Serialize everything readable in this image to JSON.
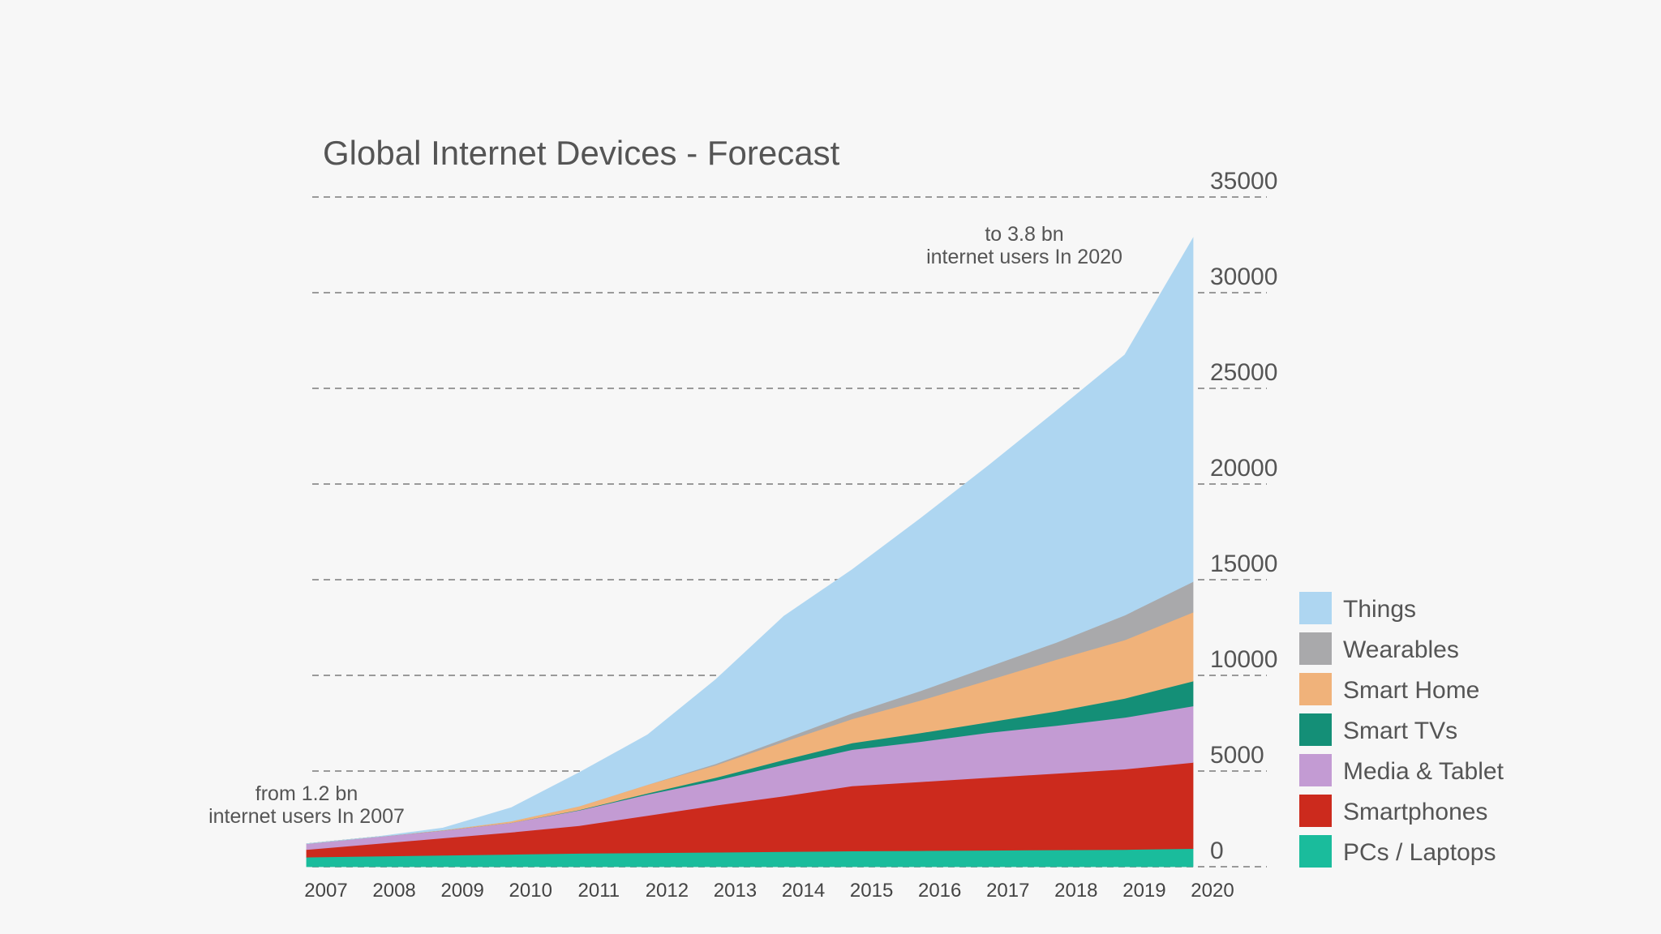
{
  "chart_data": {
    "type": "area",
    "stacked": true,
    "title": "Global Internet Devices - Forecast",
    "xlabel": "",
    "ylabel": "",
    "x": [
      "2007",
      "2008",
      "2009",
      "2010",
      "2011",
      "2012",
      "2013",
      "2014",
      "2015",
      "2016",
      "2017",
      "2018",
      "2019",
      "2020"
    ],
    "ylim": [
      0,
      35000
    ],
    "yticks": [
      "0",
      "5000",
      "10000",
      "15000",
      "20000",
      "25000",
      "30000",
      "35000"
    ],
    "grid": true,
    "legend_position": "right",
    "series": [
      {
        "name": "PCs / Laptops",
        "color": "#1abc9c",
        "values": [
          500,
          550,
          600,
          650,
          700,
          730,
          760,
          790,
          820,
          840,
          860,
          880,
          900,
          950
        ]
      },
      {
        "name": "Smartphones",
        "color": "#cc2a1d",
        "values": [
          400,
          650,
          900,
          1150,
          1450,
          1950,
          2450,
          2900,
          3400,
          3600,
          3800,
          4000,
          4200,
          4500
        ]
      },
      {
        "name": "Media & Tablet",
        "color": "#c39bd3",
        "values": [
          300,
          350,
          400,
          500,
          800,
          1100,
          1300,
          1650,
          1900,
          2100,
          2350,
          2500,
          2700,
          2950
        ]
      },
      {
        "name": "Smart TVs",
        "color": "#148f77",
        "values": [
          0,
          0,
          0,
          0,
          20,
          60,
          150,
          250,
          350,
          450,
          550,
          750,
          1000,
          1300
        ]
      },
      {
        "name": "Smart Home",
        "color": "#f0b27a",
        "values": [
          0,
          0,
          20,
          80,
          200,
          450,
          650,
          950,
          1250,
          1700,
          2200,
          2700,
          3050,
          3600
        ]
      },
      {
        "name": "Wearables",
        "color": "#a9a9ab",
        "values": [
          0,
          0,
          0,
          0,
          0,
          0,
          70,
          150,
          300,
          500,
          700,
          900,
          1300,
          1600
        ]
      },
      {
        "name": "Things",
        "color": "#aed6f1",
        "values": [
          0,
          0,
          100,
          700,
          1750,
          2600,
          4400,
          6400,
          7500,
          9000,
          10500,
          12100,
          13600,
          17950
        ]
      }
    ],
    "annotations": {
      "start": [
        "from 1.2 bn",
        "internet users In 2007"
      ],
      "end": [
        "to 3.8 bn",
        "internet users In 2020"
      ]
    },
    "legend_order": [
      "Things",
      "Wearables",
      "Smart Home",
      "Smart TVs",
      "Media & Tablet",
      "Smartphones",
      "PCs / Laptops"
    ]
  }
}
